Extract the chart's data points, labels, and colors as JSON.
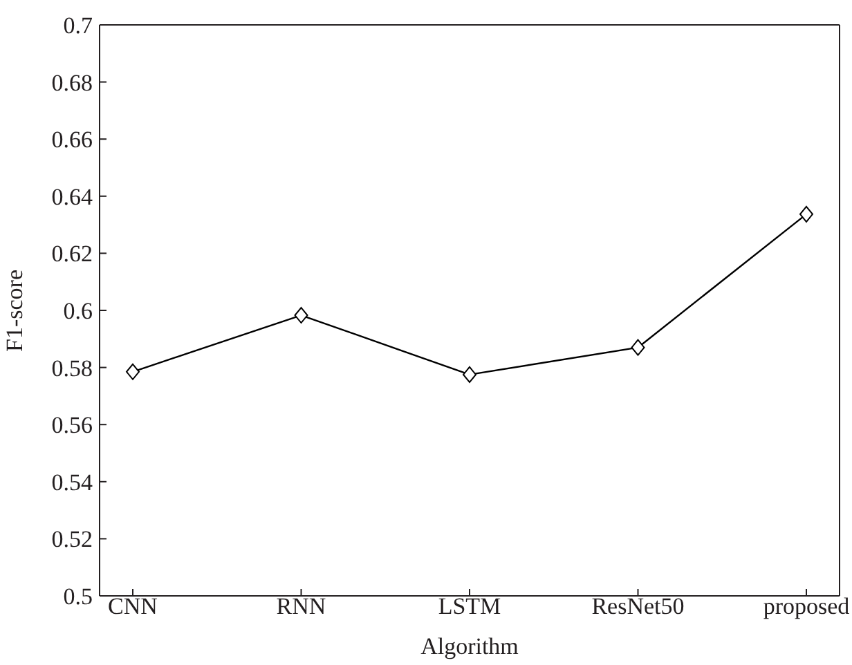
{
  "chart_data": {
    "type": "line",
    "xlabel": "Algorithm",
    "ylabel": "F1-score",
    "categories": [
      "CNN",
      "RNN",
      "LSTM",
      "ResNet50",
      "proposed"
    ],
    "series": [
      {
        "color": "#000000",
        "values": [
          0.5785,
          0.5983,
          0.5775,
          0.587,
          0.6337
        ]
      }
    ],
    "ylim": [
      0.5,
      0.7
    ],
    "yticks": [
      0.5,
      0.52,
      0.54,
      0.56,
      0.58,
      0.6,
      0.62,
      0.64,
      0.66,
      0.68,
      0.7
    ],
    "grid": false,
    "legend": false,
    "marker": "diamond",
    "line_style": "solid"
  }
}
